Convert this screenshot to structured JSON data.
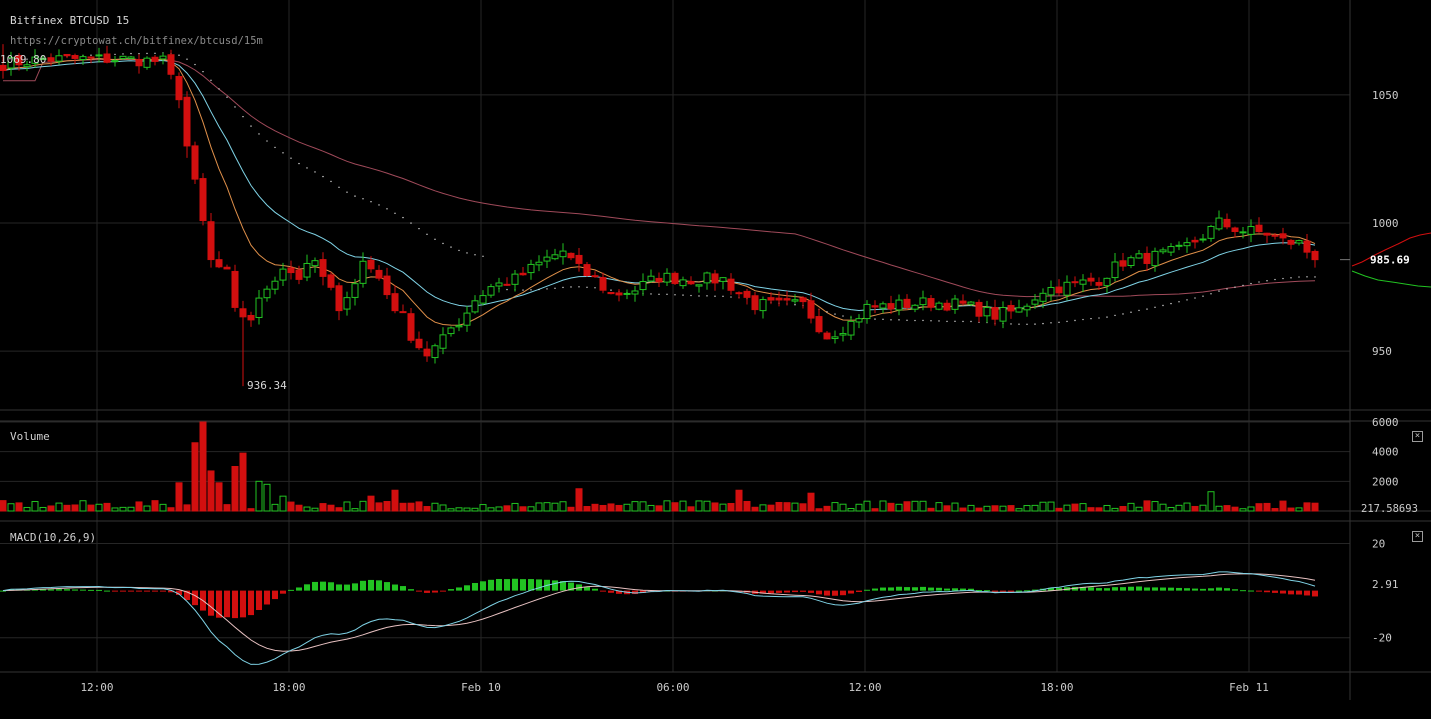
{
  "header": {
    "title": "Bitfinex BTCUSD 15",
    "url": "https://cryptowat.ch/bitfinex/btcusd/15m"
  },
  "colors": {
    "background": "#000000",
    "grid": "#262626",
    "up": "#22c322",
    "down": "#d20f0f",
    "ema_fast": "#e0904a",
    "ema_slow": "#7fd3e6",
    "ma_long": "#a04a5a",
    "macd_line": "#7fd3e6",
    "signal_line": "#e7c1c1",
    "text": "#cccccc"
  },
  "x_axis": {
    "labels": [
      "12:00",
      "18:00",
      "Feb 10",
      "06:00",
      "12:00",
      "18:00",
      "Feb 11"
    ]
  },
  "price_pane": {
    "y_ticks": [
      "1050",
      "1000",
      "950"
    ],
    "high_marker": "1069.80",
    "low_marker": "936.34",
    "current_price": "985.69"
  },
  "volume_pane": {
    "label": "Volume",
    "y_ticks": [
      "6000",
      "4000",
      "2000"
    ],
    "current_value": "217.58693"
  },
  "macd_pane": {
    "label": "MACD(10,26,9)",
    "y_ticks": [
      "20",
      "-20"
    ],
    "current_value": "2.91"
  },
  "chart_data": {
    "type": "candlestick",
    "title": "Bitfinex BTCUSD 15",
    "interval": "15m",
    "x_tick_labels": [
      "12:00",
      "18:00",
      "Feb 10",
      "06:00",
      "12:00",
      "18:00",
      "Feb 11"
    ],
    "price_ylim": [
      927,
      1080
    ],
    "price_ticks": [
      1050,
      1000,
      950
    ],
    "marked_high": 1069.8,
    "marked_low": 936.34,
    "last_price": 985.69,
    "close_anchors": [
      [
        0,
        1062
      ],
      [
        5,
        1064
      ],
      [
        10,
        1064
      ],
      [
        15,
        1064
      ],
      [
        20,
        1063
      ],
      [
        22,
        1050
      ],
      [
        23,
        1030
      ],
      [
        25,
        1000
      ],
      [
        26,
        985
      ],
      [
        28,
        980
      ],
      [
        29,
        965
      ],
      [
        31,
        963
      ],
      [
        33,
        975
      ],
      [
        35,
        983
      ],
      [
        37,
        979
      ],
      [
        39,
        985
      ],
      [
        40,
        978
      ],
      [
        42,
        968
      ],
      [
        44,
        976
      ],
      [
        45,
        985
      ],
      [
        47,
        980
      ],
      [
        48,
        970
      ],
      [
        50,
        966
      ],
      [
        51,
        955
      ],
      [
        53,
        946
      ],
      [
        55,
        958
      ],
      [
        57,
        961
      ],
      [
        59,
        970
      ],
      [
        61,
        975
      ],
      [
        64,
        978
      ],
      [
        68,
        986
      ],
      [
        70,
        989
      ],
      [
        72,
        982
      ],
      [
        74,
        978
      ],
      [
        76,
        972
      ],
      [
        79,
        974
      ],
      [
        82,
        979
      ],
      [
        86,
        978
      ],
      [
        90,
        978
      ],
      [
        94,
        968
      ],
      [
        97,
        968
      ],
      [
        100,
        968
      ],
      [
        103,
        956
      ],
      [
        106,
        961
      ],
      [
        108,
        967
      ],
      [
        112,
        968
      ],
      [
        116,
        969
      ],
      [
        120,
        968
      ],
      [
        124,
        964
      ],
      [
        127,
        966
      ],
      [
        130,
        974
      ],
      [
        134,
        976
      ],
      [
        137,
        978
      ],
      [
        140,
        985
      ],
      [
        144,
        987
      ],
      [
        147,
        989
      ],
      [
        150,
        995
      ],
      [
        152,
        1000
      ],
      [
        155,
        997
      ],
      [
        158,
        996
      ],
      [
        160,
        993
      ],
      [
        162,
        992
      ],
      [
        164,
        986
      ]
    ],
    "volume_ylim": [
      0,
      6000
    ],
    "volume_ticks": [
      6000,
      4000,
      2000
    ],
    "last_volume": 217.58693,
    "volume_spikes": {
      "22": 1900,
      "24": 4600,
      "25": 6000,
      "26": 2700,
      "27": 1900,
      "29": 3000,
      "30": 3900,
      "32": 2000,
      "33": 1800,
      "35": 1000,
      "46": 1000,
      "49": 1400,
      "72": 1500,
      "92": 1400,
      "101": 1200,
      "151": 1300
    },
    "macd": {
      "params": [
        10,
        26,
        9
      ],
      "ylim": [
        -35,
        30
      ],
      "ticks": [
        20,
        -20
      ],
      "last_value": 2.91
    }
  }
}
